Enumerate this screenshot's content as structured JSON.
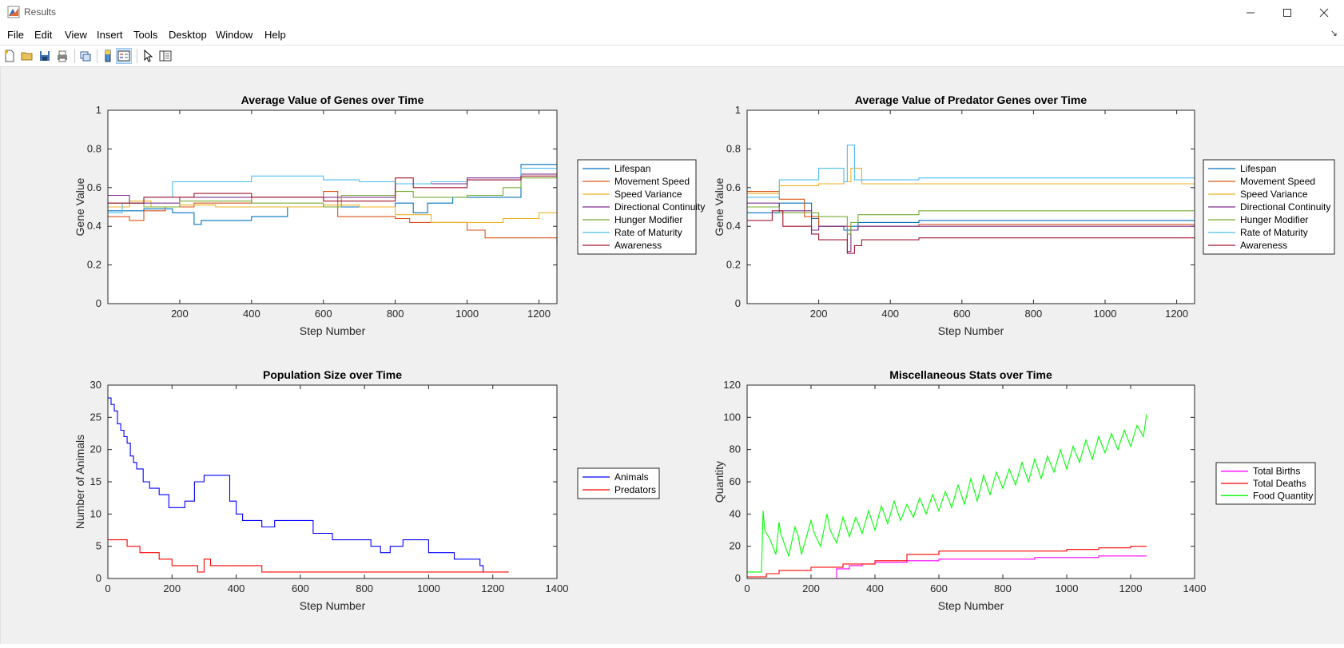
{
  "window": {
    "title": "Results"
  },
  "menu": [
    "File",
    "Edit",
    "View",
    "Insert",
    "Tools",
    "Desktop",
    "Window",
    "Help"
  ],
  "toolbar_icons": [
    "new-figure-icon",
    "open-icon",
    "save-icon",
    "print-icon",
    "link-plot-icon",
    "insert-colorbar-icon",
    "insert-legend-icon",
    "edit-plot-icon",
    "property-inspector-icon"
  ],
  "colors": {
    "lifespan": "#0072bd",
    "movement": "#d95319",
    "speedvar": "#edb120",
    "directional": "#7e2f8e",
    "hunger": "#77ac30",
    "maturity": "#4dbeee",
    "awareness": "#a2142f",
    "animals": "#0000ff",
    "predators": "#ff0000",
    "births": "#ff00ff",
    "deaths": "#ff0000",
    "food": "#00ff00"
  },
  "chart_data": [
    {
      "type": "line",
      "title": "Average Value of Genes over Time",
      "xlabel": "Step Number",
      "ylabel": "Gene Value",
      "xlim": [
        0,
        1250
      ],
      "ylim": [
        0,
        1
      ],
      "xticks": [
        200,
        400,
        600,
        800,
        1000,
        1200
      ],
      "yticks": [
        0,
        0.2,
        0.4,
        0.6,
        0.8,
        1
      ],
      "legend_position": "right",
      "series": [
        {
          "name": "Lifespan",
          "color_key": "lifespan",
          "x": [
            0,
            100,
            180,
            240,
            260,
            380,
            400,
            500,
            640,
            800,
            850,
            890,
            960,
            1150,
            1250
          ],
          "y": [
            0.48,
            0.49,
            0.47,
            0.41,
            0.43,
            0.43,
            0.45,
            0.5,
            0.5,
            0.52,
            0.47,
            0.52,
            0.55,
            0.72,
            0.72
          ]
        },
        {
          "name": "Movement Speed",
          "color_key": "movement",
          "x": [
            0,
            60,
            100,
            160,
            240,
            400,
            600,
            640,
            800,
            840,
            1000,
            1050,
            1250
          ],
          "y": [
            0.45,
            0.43,
            0.48,
            0.5,
            0.52,
            0.55,
            0.58,
            0.45,
            0.44,
            0.42,
            0.38,
            0.34,
            0.3
          ]
        },
        {
          "name": "Speed Variance",
          "color_key": "speedvar",
          "x": [
            0,
            60,
            120,
            200,
            300,
            400,
            600,
            700,
            800,
            900,
            1100,
            1200,
            1250
          ],
          "y": [
            0.5,
            0.53,
            0.5,
            0.51,
            0.5,
            0.5,
            0.51,
            0.5,
            0.46,
            0.42,
            0.44,
            0.47,
            0.47
          ]
        },
        {
          "name": "Directional Continuity",
          "color_key": "directional",
          "x": [
            0,
            60,
            200,
            400,
            600,
            800,
            900,
            1000,
            1150,
            1250
          ],
          "y": [
            0.56,
            0.52,
            0.55,
            0.55,
            0.55,
            0.62,
            0.62,
            0.65,
            0.67,
            0.68
          ]
        },
        {
          "name": "Hunger Modifier",
          "color_key": "hunger",
          "x": [
            0,
            100,
            200,
            400,
            600,
            650,
            800,
            850,
            1000,
            1100,
            1150,
            1250
          ],
          "y": [
            0.52,
            0.5,
            0.53,
            0.52,
            0.5,
            0.56,
            0.58,
            0.55,
            0.56,
            0.6,
            0.65,
            0.65
          ]
        },
        {
          "name": "Rate of Maturity",
          "color_key": "maturity",
          "x": [
            0,
            40,
            100,
            180,
            260,
            400,
            600,
            700,
            800,
            900,
            1000,
            1150,
            1250
          ],
          "y": [
            0.47,
            0.52,
            0.55,
            0.63,
            0.63,
            0.66,
            0.64,
            0.63,
            0.62,
            0.63,
            0.64,
            0.7,
            0.72
          ]
        },
        {
          "name": "Awareness",
          "color_key": "awareness",
          "x": [
            0,
            100,
            240,
            400,
            600,
            800,
            850,
            1000,
            1150,
            1250
          ],
          "y": [
            0.52,
            0.55,
            0.57,
            0.55,
            0.53,
            0.65,
            0.6,
            0.64,
            0.66,
            0.67
          ]
        }
      ]
    },
    {
      "type": "line",
      "title": "Average Value of Predator Genes over Time",
      "xlabel": "Step Number",
      "ylabel": "Gene Value",
      "xlim": [
        0,
        1250
      ],
      "ylim": [
        0,
        1
      ],
      "xticks": [
        200,
        400,
        600,
        800,
        1000,
        1200
      ],
      "yticks": [
        0,
        0.2,
        0.4,
        0.6,
        0.8,
        1
      ],
      "legend_position": "right",
      "series": [
        {
          "name": "Lifespan",
          "color_key": "lifespan",
          "x": [
            0,
            90,
            180,
            200,
            270,
            290,
            310,
            480,
            1250
          ],
          "y": [
            0.47,
            0.52,
            0.44,
            0.4,
            0.38,
            0.4,
            0.42,
            0.43,
            0.43
          ]
        },
        {
          "name": "Movement Speed",
          "color_key": "movement",
          "x": [
            0,
            90,
            160,
            200,
            270,
            290,
            310,
            480,
            1250
          ],
          "y": [
            0.58,
            0.54,
            0.45,
            0.4,
            0.4,
            0.38,
            0.4,
            0.41,
            0.41
          ]
        },
        {
          "name": "Speed Variance",
          "color_key": "speedvar",
          "x": [
            0,
            90,
            200,
            270,
            290,
            320,
            480,
            1250
          ],
          "y": [
            0.57,
            0.61,
            0.62,
            0.63,
            0.7,
            0.62,
            0.62,
            0.62
          ]
        },
        {
          "name": "Directional Continuity",
          "color_key": "directional",
          "x": [
            0,
            90,
            180,
            200,
            280,
            290,
            310,
            480,
            1250
          ],
          "y": [
            0.52,
            0.48,
            0.38,
            0.4,
            0.27,
            0.38,
            0.4,
            0.4,
            0.4
          ]
        },
        {
          "name": "Hunger Modifier",
          "color_key": "hunger",
          "x": [
            0,
            90,
            200,
            280,
            290,
            310,
            480,
            1250
          ],
          "y": [
            0.5,
            0.47,
            0.45,
            0.36,
            0.42,
            0.46,
            0.48,
            0.48
          ]
        },
        {
          "name": "Rate of Maturity",
          "color_key": "maturity",
          "x": [
            0,
            90,
            200,
            270,
            280,
            300,
            480,
            1250
          ],
          "y": [
            0.55,
            0.64,
            0.7,
            0.63,
            0.82,
            0.64,
            0.65,
            0.65
          ]
        },
        {
          "name": "Awareness",
          "color_key": "awareness",
          "x": [
            0,
            70,
            100,
            180,
            200,
            260,
            280,
            300,
            320,
            480,
            1250
          ],
          "y": [
            0.43,
            0.48,
            0.4,
            0.36,
            0.33,
            0.33,
            0.26,
            0.3,
            0.33,
            0.34,
            0.34
          ]
        }
      ]
    },
    {
      "type": "line",
      "title": "Population Size over Time",
      "xlabel": "Step Number",
      "ylabel": "Number of Animals",
      "xlim": [
        0,
        1400
      ],
      "ylim": [
        0,
        30
      ],
      "xticks": [
        0,
        200,
        400,
        600,
        800,
        1000,
        1200,
        1400
      ],
      "yticks": [
        0,
        5,
        10,
        15,
        20,
        25,
        30
      ],
      "legend_position": "right",
      "series": [
        {
          "name": "Animals",
          "color_key": "animals",
          "x": [
            0,
            10,
            20,
            30,
            40,
            50,
            60,
            70,
            80,
            90,
            110,
            130,
            160,
            190,
            240,
            270,
            300,
            330,
            360,
            380,
            400,
            420,
            440,
            480,
            520,
            560,
            640,
            700,
            760,
            820,
            850,
            880,
            920,
            1000,
            1080,
            1120,
            1160,
            1170
          ],
          "y": [
            28,
            27,
            26,
            24,
            23,
            22,
            21,
            19,
            18,
            17,
            15,
            14,
            13,
            11,
            12,
            15,
            16,
            16,
            16,
            12,
            10,
            9,
            9,
            8,
            9,
            9,
            7,
            6,
            6,
            5,
            4,
            5,
            6,
            4,
            3,
            3,
            2,
            1
          ]
        },
        {
          "name": "Predators",
          "color_key": "predators",
          "x": [
            0,
            60,
            100,
            160,
            200,
            280,
            300,
            320,
            400,
            480,
            1250
          ],
          "y": [
            6,
            5,
            4,
            3,
            2,
            1,
            3,
            2,
            2,
            1,
            1
          ]
        }
      ]
    },
    {
      "type": "line",
      "title": "Miscellaneous Stats over Time",
      "xlabel": "Step Number",
      "ylabel": "Quantity",
      "xlim": [
        0,
        1400
      ],
      "ylim": [
        0,
        120
      ],
      "xticks": [
        0,
        200,
        400,
        600,
        800,
        1000,
        1200,
        1400
      ],
      "yticks": [
        0,
        20,
        40,
        60,
        80,
        100,
        120
      ],
      "legend_position": "right",
      "series": [
        {
          "name": "Total Births",
          "color_key": "births",
          "x": [
            0,
            240,
            280,
            320,
            360,
            400,
            500,
            600,
            700,
            800,
            900,
            1000,
            1100,
            1200,
            1250
          ],
          "y": [
            0,
            0,
            6,
            8,
            9,
            10,
            11,
            12,
            12,
            12,
            13,
            13,
            14,
            14,
            14
          ]
        },
        {
          "name": "Total Deaths",
          "color_key": "deaths",
          "x": [
            0,
            60,
            100,
            200,
            300,
            400,
            500,
            600,
            700,
            800,
            900,
            1000,
            1100,
            1200,
            1250
          ],
          "y": [
            1,
            3,
            5,
            7,
            9,
            11,
            15,
            17,
            17,
            17,
            17,
            18,
            19,
            20,
            20
          ]
        },
        {
          "name": "Food Quantity",
          "color_key": "food",
          "x": [
            0,
            45,
            50,
            55,
            70,
            90,
            100,
            105,
            130,
            150,
            160,
            170,
            200,
            210,
            230,
            250,
            260,
            280,
            300,
            320,
            340,
            360,
            380,
            400,
            420,
            440,
            460,
            480,
            500,
            520,
            540,
            560,
            580,
            600,
            620,
            640,
            660,
            680,
            700,
            720,
            740,
            760,
            780,
            800,
            820,
            840,
            860,
            880,
            900,
            920,
            940,
            960,
            980,
            1000,
            1020,
            1040,
            1060,
            1080,
            1100,
            1120,
            1140,
            1160,
            1180,
            1200,
            1220,
            1240,
            1250
          ],
          "y": [
            4,
            4,
            42,
            30,
            25,
            15,
            35,
            28,
            14,
            32,
            26,
            15,
            36,
            28,
            20,
            40,
            30,
            22,
            38,
            26,
            38,
            28,
            42,
            30,
            45,
            34,
            48,
            36,
            46,
            38,
            50,
            40,
            52,
            42,
            54,
            44,
            58,
            46,
            62,
            48,
            64,
            52,
            66,
            56,
            68,
            58,
            72,
            60,
            74,
            62,
            76,
            66,
            80,
            68,
            82,
            72,
            86,
            74,
            88,
            78,
            90,
            80,
            92,
            82,
            95,
            88,
            102
          ]
        }
      ]
    }
  ]
}
